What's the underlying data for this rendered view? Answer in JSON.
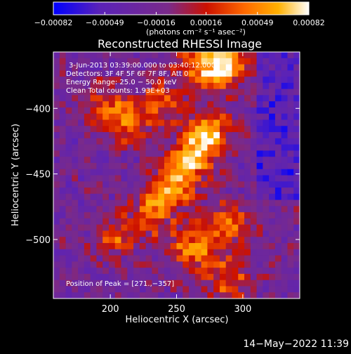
{
  "chart_data": {
    "type": "heatmap",
    "title": "Reconstructed RHESSI Image",
    "xlabel": "Heliocentric X (arcsec)",
    "ylabel": "Heliocentric Y (arcsec)",
    "xlim": [
      157,
      343
    ],
    "ylim": [
      -545,
      -357
    ],
    "x_ticks": [
      {
        "value": 200,
        "label": "200"
      },
      {
        "value": 250,
        "label": "250"
      },
      {
        "value": 300,
        "label": "300"
      }
    ],
    "y_ticks": [
      {
        "value": -400,
        "label": "−400"
      },
      {
        "value": -450,
        "label": "−450"
      },
      {
        "value": -500,
        "label": "−500"
      }
    ],
    "colorbar": {
      "min": -0.00082,
      "max": 0.00082,
      "ticks": [
        {
          "value": -0.00082,
          "label": "−0.00082"
        },
        {
          "value": -0.00049,
          "label": "−0.00049"
        },
        {
          "value": -0.00016,
          "label": "−0.00016"
        },
        {
          "value": 0.00016,
          "label": "0.00016"
        },
        {
          "value": 0.00049,
          "label": "0.00049"
        },
        {
          "value": 0.00082,
          "label": "0.00082"
        }
      ],
      "units_label": "(photons cm⁻² s⁻¹ asec⁻²)",
      "colors": [
        "#0000ff",
        "#5a22b8",
        "#7a2a8a",
        "#cc1100",
        "#ff6a00",
        "#ffb000",
        "#ffffff"
      ]
    },
    "annotations": {
      "time_range": "3-Jun-2013 03:39:00.000 to 03:40:12.000",
      "detectors": "Detectors: 3F 4F 5F 6F 7F 8F, Att 0",
      "energy_range": "Energy Range: 25.0 − 50.0 keV",
      "clean_total_counts": "Clean     Total counts: 1.93E+03",
      "peak": "Position of Peak = [271.,−357]"
    },
    "peak_position": [
      271,
      -357
    ],
    "source_ridge": [
      {
        "x": 198,
        "y": -398,
        "value": 0.0004
      },
      {
        "x": 213,
        "y": -410,
        "value": 0.0005
      },
      {
        "x": 240,
        "y": -395,
        "value": 0.00045
      },
      {
        "x": 268,
        "y": -368,
        "value": 0.0006
      },
      {
        "x": 287,
        "y": -367,
        "value": 0.00082
      },
      {
        "x": 275,
        "y": -418,
        "value": 0.00082
      },
      {
        "x": 262,
        "y": -438,
        "value": 0.00075
      },
      {
        "x": 248,
        "y": -458,
        "value": 0.0007
      },
      {
        "x": 232,
        "y": -478,
        "value": 0.0006
      },
      {
        "x": 205,
        "y": -498,
        "value": 0.0005
      },
      {
        "x": 262,
        "y": -508,
        "value": 0.0007
      },
      {
        "x": 288,
        "y": -490,
        "value": 0.0006
      },
      {
        "x": 290,
        "y": -530,
        "value": 0.0005
      }
    ],
    "footer_timestamp": "14−May−2022 11:39"
  }
}
